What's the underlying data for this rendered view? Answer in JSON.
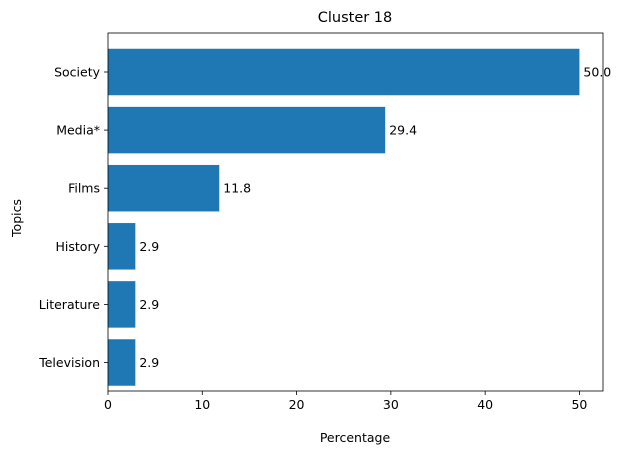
{
  "chart_data": {
    "type": "bar",
    "orientation": "horizontal",
    "title": "Cluster 18",
    "xlabel": "Percentage",
    "ylabel": "Topics",
    "categories": [
      "Society",
      "Media*",
      "Films",
      "History",
      "Literature",
      "Television"
    ],
    "values": [
      50.0,
      29.4,
      11.8,
      2.9,
      2.9,
      2.9
    ],
    "value_labels": [
      "50.0",
      "29.4",
      "11.8",
      "2.9",
      "2.9",
      "2.9"
    ],
    "xlim": [
      0,
      52.5
    ],
    "xticks": [
      0,
      10,
      20,
      30,
      40,
      50
    ],
    "grid": false,
    "bar_color": "#1f77b4"
  }
}
